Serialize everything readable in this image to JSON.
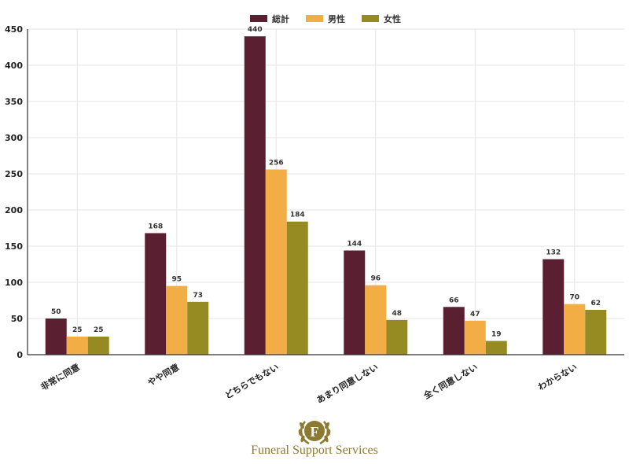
{
  "chart_data": {
    "type": "bar",
    "categories": [
      "非常に同意",
      "やや同意",
      "どちらでもない",
      "あまり同意しない",
      "全く同意しない",
      "わからない"
    ],
    "series": [
      {
        "name": "総計",
        "color": "#5a1f31",
        "values": [
          50,
          168,
          440,
          144,
          66,
          132
        ]
      },
      {
        "name": "男性",
        "color": "#f2ad45",
        "values": [
          25,
          95,
          256,
          96,
          47,
          70
        ]
      },
      {
        "name": "女性",
        "color": "#958b22",
        "values": [
          25,
          73,
          184,
          48,
          19,
          62
        ]
      }
    ],
    "ylim": [
      0,
      450
    ],
    "yticks": [
      0,
      50,
      100,
      150,
      200,
      250,
      300,
      350,
      400,
      450
    ],
    "grid": true,
    "legend_position": "top-center"
  },
  "footer": {
    "brand_text": "Funeral Support Services",
    "logo_letter": "F",
    "logo_color": "#8c7a2e"
  }
}
